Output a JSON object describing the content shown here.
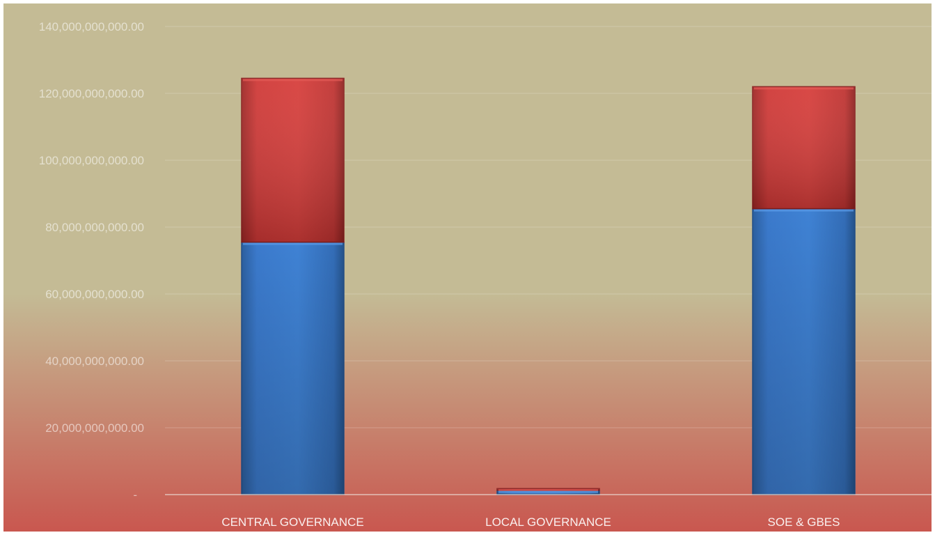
{
  "chart_data": {
    "type": "bar",
    "stacked": true,
    "categories": [
      "CENTRAL GOVERNANCE",
      "LOCAL GOVERNANCE",
      "SOE & GBES"
    ],
    "series": [
      {
        "color": "#3a7ad0",
        "values": [
          75500000000,
          1300000000,
          85500000000
        ]
      },
      {
        "color": "#d33a38",
        "values": [
          49000000000,
          500000000,
          36500000000
        ]
      }
    ],
    "ylim": [
      0,
      140000000000
    ],
    "yticks": [
      0,
      20000000000,
      40000000000,
      60000000000,
      80000000000,
      100000000000,
      120000000000,
      140000000000
    ],
    "ytick_labels": [
      "-",
      "20,000,000,000.00",
      "40,000,000,000.00",
      "60,000,000,000.00",
      "80,000,000,000.00",
      "100,000,000,000.00",
      "120,000,000,000.00",
      "140,000,000,000.00"
    ],
    "grid": true,
    "legend": "none",
    "background": {
      "top": "#c4bb95",
      "bottom": "#c9574f"
    }
  }
}
